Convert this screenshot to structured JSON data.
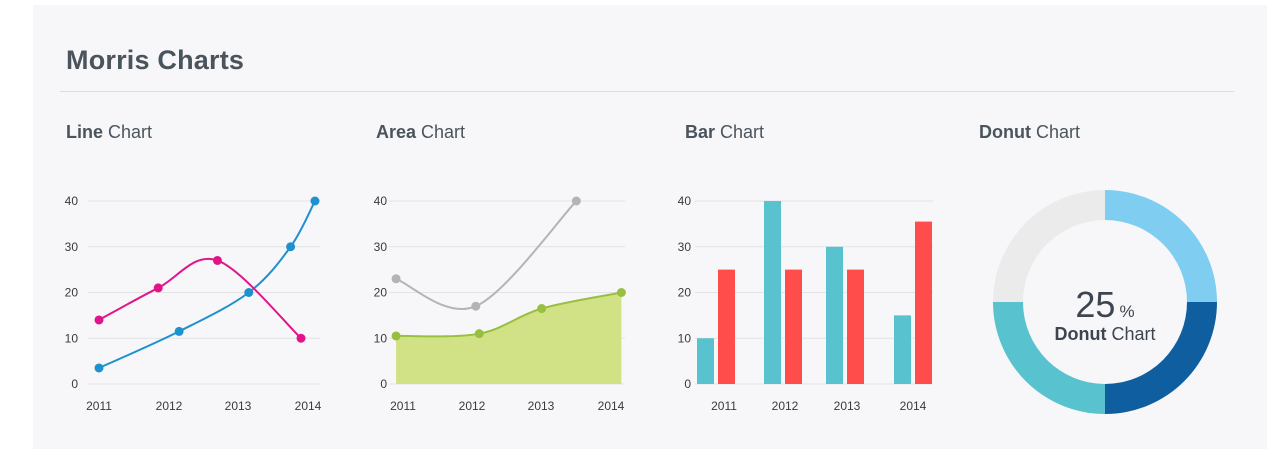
{
  "page": {
    "title": "Morris Charts"
  },
  "headings": {
    "line": {
      "bold": "Line",
      "rest": " Chart"
    },
    "area": {
      "bold": "Area",
      "rest": " Chart"
    },
    "bar": {
      "bold": "Bar",
      "rest": " Chart"
    },
    "donut": {
      "bold": "Donut",
      "rest": " Chart"
    }
  },
  "chart_data": [
    {
      "type": "line",
      "ylim": [
        0,
        40
      ],
      "yticks": [
        0,
        10,
        20,
        30,
        40
      ],
      "xlabels": [
        "2011",
        "2012",
        "2013",
        "2014"
      ],
      "grid": true,
      "series": [
        {
          "color": "#1f91cf",
          "points": [
            [
              2011.0,
              3.5
            ],
            [
              2012.15,
              11.5
            ],
            [
              2013.15,
              20
            ],
            [
              2013.75,
              30
            ],
            [
              2014.1,
              40
            ]
          ]
        },
        {
          "color": "#e0158c",
          "points": [
            [
              2011.0,
              14
            ],
            [
              2011.85,
              21
            ],
            [
              2012.7,
              27
            ],
            [
              2013.9,
              10
            ]
          ]
        }
      ]
    },
    {
      "type": "area",
      "ylim": [
        0,
        40
      ],
      "yticks": [
        0,
        10,
        20,
        30,
        40
      ],
      "xlabels": [
        "2011",
        "2012",
        "2013",
        "2014"
      ],
      "grid": true,
      "series": [
        {
          "color": "#b4b4b4",
          "fill": false,
          "points": [
            [
              2010.9,
              23
            ],
            [
              2012.05,
              17
            ],
            [
              2013.5,
              40
            ]
          ]
        },
        {
          "color": "#98c040",
          "fill": true,
          "fillColor": "#d1e286",
          "points": [
            [
              2010.9,
              10.5
            ],
            [
              2012.1,
              11
            ],
            [
              2013.0,
              16.5
            ],
            [
              2014.15,
              20
            ]
          ]
        }
      ]
    },
    {
      "type": "bar",
      "ylim": [
        0,
        40
      ],
      "yticks": [
        0,
        10,
        20,
        30,
        40
      ],
      "categories": [
        "2011",
        "2012",
        "2013",
        "2014"
      ],
      "grid": true,
      "series": [
        {
          "color": "#58c3cf",
          "values": [
            10,
            40,
            30,
            15
          ]
        },
        {
          "color": "#fe4d4a",
          "values": [
            25,
            25,
            25,
            35.5
          ]
        }
      ]
    },
    {
      "type": "pie",
      "donut": true,
      "center_value": "25",
      "center_unit": "%",
      "center_label_bold": "Donut",
      "center_label_rest": " Chart",
      "slices": [
        {
          "value": 25,
          "color": "#80cdf2"
        },
        {
          "value": 25,
          "color": "#0f5fa0"
        },
        {
          "value": 25,
          "color": "#58c3cf"
        },
        {
          "value": 25,
          "color": "#ebebeb"
        }
      ]
    }
  ]
}
